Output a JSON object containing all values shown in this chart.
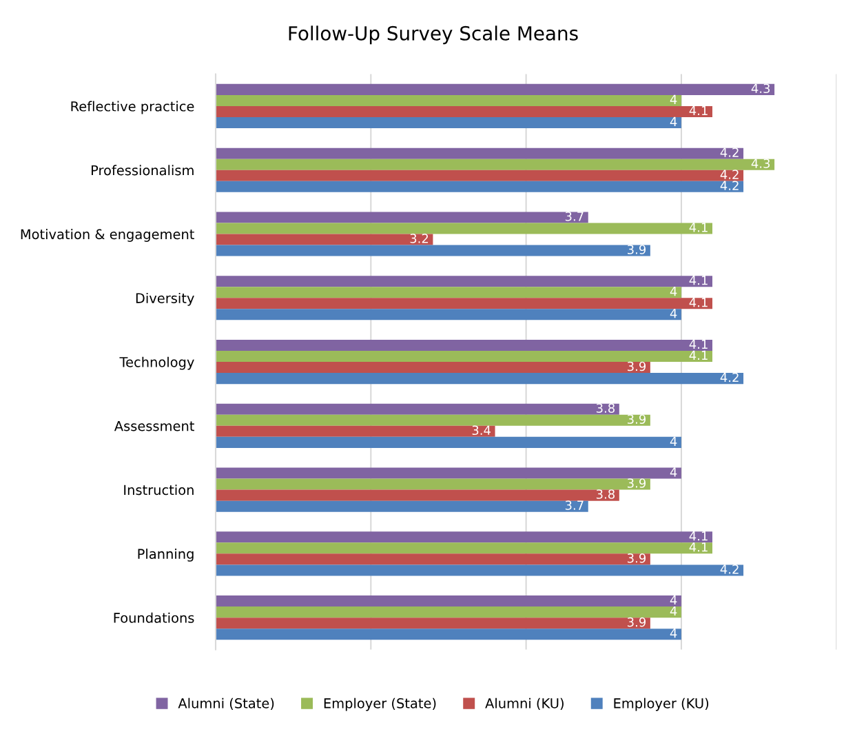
{
  "chart_data": {
    "type": "bar",
    "orientation": "horizontal",
    "title": "Follow-Up Survey Scale Means",
    "categories": [
      "Reflective practice",
      "Professionalism",
      "Motivation & engagement",
      "Diversity",
      "Technology",
      "Assessment",
      "Instruction",
      "Planning",
      "Foundations"
    ],
    "series": [
      {
        "name": "Alumni (State)",
        "color": "#8064a2",
        "values": [
          4.3,
          4.2,
          3.7,
          4.1,
          4.1,
          3.8,
          4,
          4.1,
          4
        ]
      },
      {
        "name": "Employer (State)",
        "color": "#9bbb59",
        "values": [
          4,
          4.3,
          4.1,
          4,
          4.1,
          3.9,
          3.9,
          4.1,
          4
        ]
      },
      {
        "name": "Alumni (KU)",
        "color": "#c0504d",
        "values": [
          4.1,
          4.2,
          3.2,
          4.1,
          3.9,
          3.4,
          3.8,
          3.9,
          3.9
        ]
      },
      {
        "name": "Employer (KU)",
        "color": "#4f81bd",
        "values": [
          4,
          4.2,
          3.9,
          4,
          4.2,
          4,
          3.7,
          4.2,
          4
        ]
      }
    ],
    "xlim": [
      2.5,
      4.5
    ],
    "xticks": [
      {
        "value": 2.5,
        "label": null
      },
      {
        "value": 3,
        "label": null
      },
      {
        "value": 3.5,
        "label": null
      },
      {
        "value": 4,
        "label": null
      },
      {
        "value": 4.5,
        "label": null
      }
    ],
    "grid": "x",
    "tick_labels": "y",
    "data_labels": true,
    "legend": "bottom"
  }
}
